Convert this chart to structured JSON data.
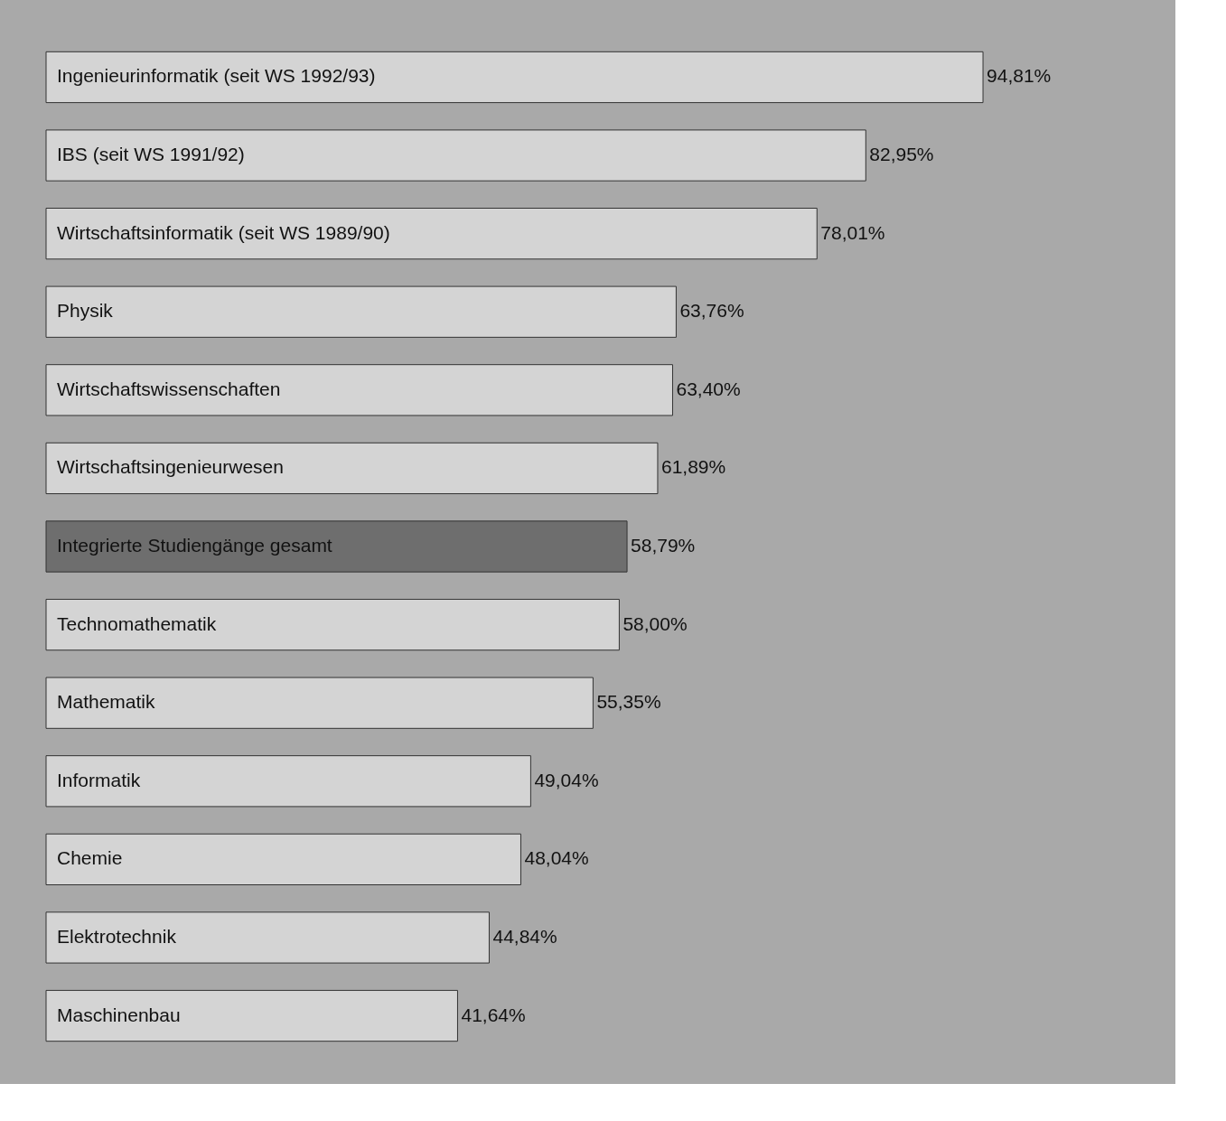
{
  "chart_data": {
    "type": "bar",
    "orientation": "horizontal",
    "categories": [
      "Ingenieurinformatik (seit WS 1992/93)",
      "IBS (seit WS 1991/92)",
      "Wirtschaftsinformatik (seit WS 1989/90)",
      "Physik",
      "Wirtschaftswissenschaften",
      "Wirtschaftsingenieurwesen",
      "Integrierte Studiengänge gesamt",
      "Technomathematik",
      "Mathematik",
      "Informatik",
      "Chemie",
      "Elektrotechnik",
      "Maschinenbau"
    ],
    "values": [
      94.81,
      82.95,
      78.01,
      63.76,
      63.4,
      61.89,
      58.79,
      58.0,
      55.35,
      49.04,
      48.04,
      44.84,
      41.64
    ],
    "value_labels": [
      "94,81%",
      "82,95%",
      "78,01%",
      "63,76%",
      "63,40%",
      "61,89%",
      "58,79%",
      "58,00%",
      "55,35%",
      "49,04%",
      "48,04%",
      "44,84%",
      "41,64%"
    ],
    "colors": [
      "#d4d4d4",
      "#d4d4d4",
      "#d4d4d4",
      "#d4d4d4",
      "#d4d4d4",
      "#d4d4d4",
      "#6e6e6e",
      "#d4d4d4",
      "#d4d4d4",
      "#d4d4d4",
      "#d4d4d4",
      "#d4d4d4",
      "#d4d4d4"
    ]
  }
}
